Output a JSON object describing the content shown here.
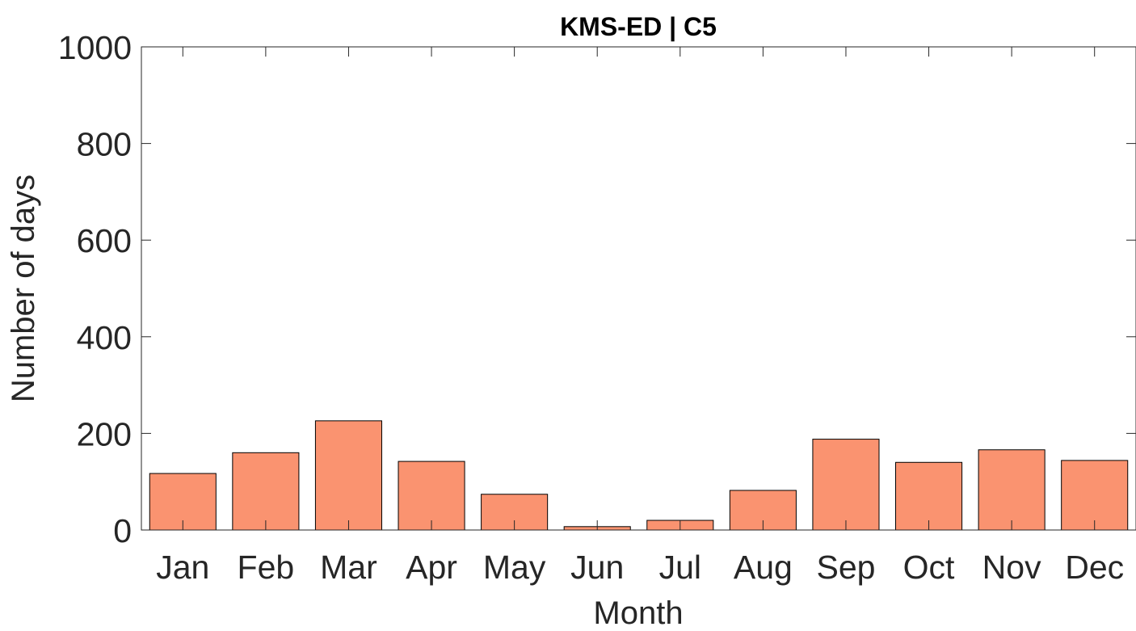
{
  "chart_data": {
    "type": "bar",
    "title": "KMS-ED | C5",
    "xlabel": "Month",
    "ylabel": "Number of days",
    "categories": [
      "Jan",
      "Feb",
      "Mar",
      "Apr",
      "May",
      "Jun",
      "Jul",
      "Aug",
      "Sep",
      "Oct",
      "Nov",
      "Dec"
    ],
    "values": [
      117,
      160,
      226,
      142,
      74,
      7,
      20,
      82,
      188,
      140,
      166,
      144
    ],
    "ylim": [
      0,
      1000
    ],
    "yticks": [
      0,
      200,
      400,
      600,
      800,
      1000
    ],
    "grid": false,
    "legend": "none",
    "colors": {
      "bar_fill": "#FA9370",
      "bar_edge": "#000000",
      "axis": "#262626"
    }
  }
}
